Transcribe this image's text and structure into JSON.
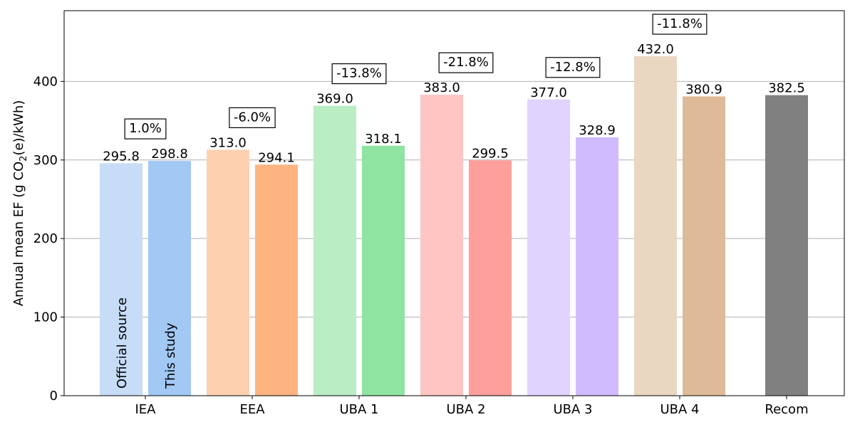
{
  "chart_data": {
    "type": "bar",
    "title": "",
    "xlabel": "",
    "ylabel": {
      "prefix": "Annual mean EF (g CO",
      "subscript": "2",
      "suffix": "(e)/kWh)"
    },
    "ylim": [
      0,
      490
    ],
    "yticks": [
      0,
      100,
      200,
      300,
      400
    ],
    "grid": "horizontal",
    "categories": [
      "IEA",
      "EEA",
      "UBA 1",
      "UBA 2",
      "UBA 3",
      "UBA 4",
      "Recom"
    ],
    "series": [
      {
        "name": "Official source",
        "values": [
          295.8,
          313.0,
          369.0,
          383.0,
          377.0,
          432.0,
          null
        ],
        "labels": [
          "295.8",
          "313.0",
          "369.0",
          "383.0",
          "377.0",
          "432.0",
          null
        ],
        "colors": [
          "#c6dcf7",
          "#fdd1b0",
          "#bbedc4",
          "#fec5c3",
          "#e0d3fe",
          "#ead7c2",
          null
        ]
      },
      {
        "name": "This study",
        "values": [
          298.8,
          294.1,
          318.1,
          299.5,
          328.9,
          380.9,
          null
        ],
        "labels": [
          "298.8",
          "294.1",
          "318.1",
          "299.5",
          "328.9",
          "380.9",
          null
        ],
        "colors": [
          "#a2c8f4",
          "#feb481",
          "#8ee4a0",
          "#fe9f9b",
          "#d0bbfe",
          "#deba98",
          null
        ]
      }
    ],
    "single": {
      "category_index": 6,
      "value": 382.5,
      "label": "382.5",
      "color": "#808080"
    },
    "differences": [
      "1.0%",
      "-6.0%",
      "-13.8%",
      "-21.8%",
      "-12.8%",
      "-11.8%",
      null
    ],
    "series_tags": [
      "Official source",
      "This study"
    ]
  }
}
